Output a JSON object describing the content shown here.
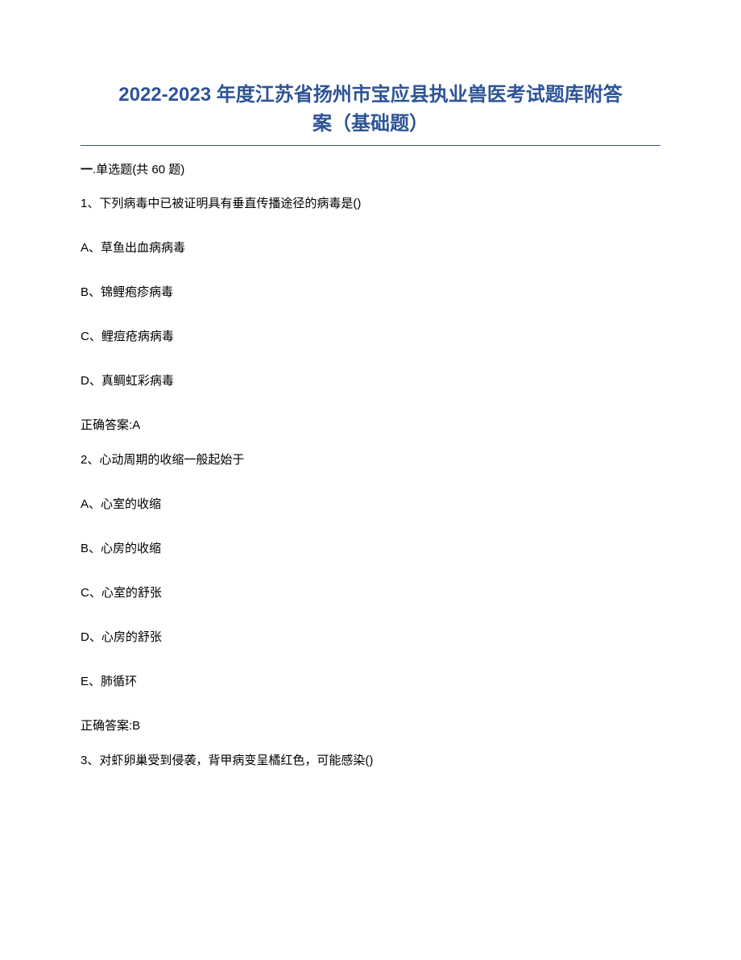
{
  "title_line1": "2022-2023 年度江苏省扬州市宝应县执业兽医考试题库附答",
  "title_line2": "案（基础题）",
  "section_prefix": "一",
  "section_middle": ".单选题",
  "section_suffix": "(共 60 题)",
  "q1": {
    "text": "1、下列病毒中已被证明具有垂直传播途径的病毒是()",
    "A": "A、草鱼出血病病毒",
    "B": "B、锦鲤疱疹病毒",
    "C": "C、鲤痘疮病病毒",
    "D": "D、真鲷虹彩病毒",
    "answer": "正确答案:A"
  },
  "q2": {
    "text": "2、心动周期的收缩一般起始于",
    "A": "A、心室的收缩",
    "B": "B、心房的收缩",
    "C": "C、心室的舒张",
    "D": "D、心房的舒张",
    "E": "E、肺循环",
    "answer": "正确答案:B"
  },
  "q3": {
    "text": "3、对虾卵巢受到侵袭，背甲病变呈橘红色，可能感染()"
  }
}
